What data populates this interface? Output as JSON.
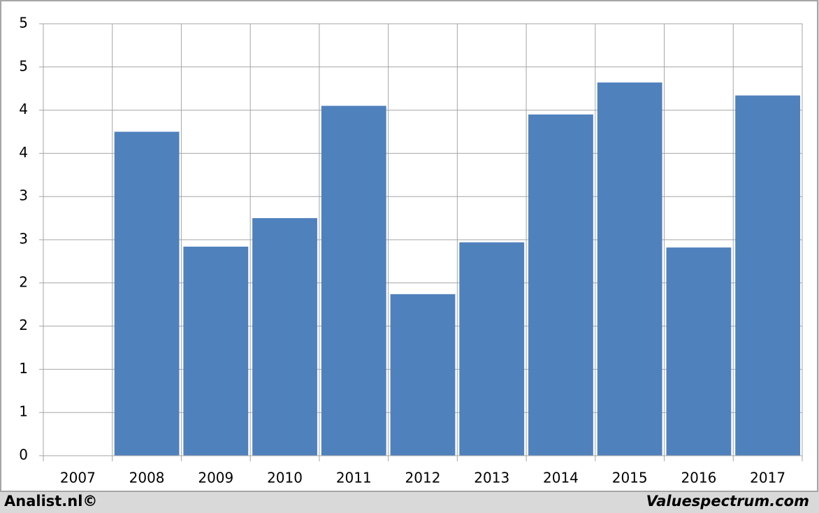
{
  "chart_data": {
    "type": "bar",
    "categories": [
      "2007",
      "2008",
      "2009",
      "2010",
      "2011",
      "2012",
      "2013",
      "2014",
      "2015",
      "2016",
      "2017"
    ],
    "values": [
      null,
      3.75,
      2.42,
      2.75,
      4.05,
      1.87,
      2.47,
      3.95,
      4.32,
      2.41,
      4.17
    ],
    "color": "#4f81bd",
    "ylim": [
      0,
      5
    ],
    "yticks": [
      0,
      {
        "value": 0.5,
        "label": "1"
      },
      {
        "value": 1,
        "label": "1"
      },
      {
        "value": 1.5,
        "label": "2"
      },
      {
        "value": 2,
        "label": "2"
      },
      {
        "value": 2.5,
        "label": "3"
      },
      {
        "value": 3,
        "label": "3"
      },
      {
        "value": 3.5,
        "label": "4"
      },
      {
        "value": 4,
        "label": "4"
      },
      {
        "value": 4.5,
        "label": "5"
      },
      {
        "value": 5,
        "label": "5"
      }
    ],
    "grid": true
  },
  "footer": {
    "left": "Analist.nl©",
    "right": "Valuespectrum.com"
  }
}
